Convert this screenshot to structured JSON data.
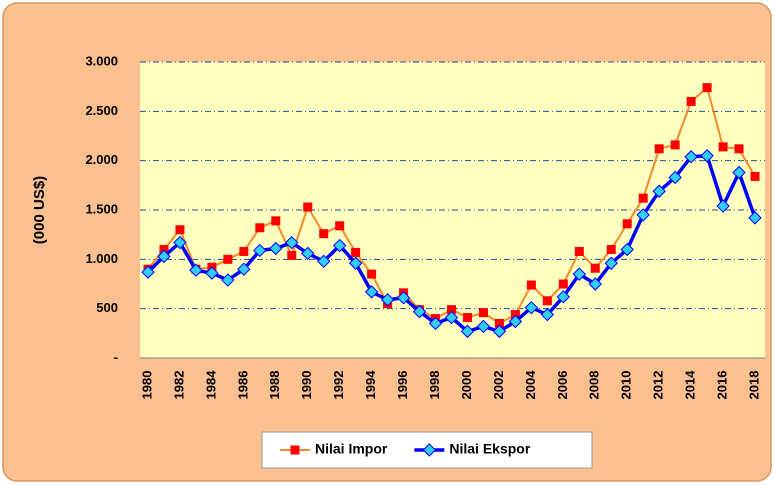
{
  "chart_data": {
    "type": "line",
    "y_axis_label": "(000 US$)",
    "categories": [
      "1980",
      null,
      "1982",
      null,
      "1984",
      null,
      "1986",
      null,
      "1988",
      null,
      "1990",
      null,
      "1992",
      null,
      "1994",
      null,
      "1996",
      null,
      "1998",
      null,
      "2000",
      null,
      "2002",
      null,
      "2004",
      null,
      "2006",
      null,
      "2008",
      null,
      "2010",
      null,
      "2012",
      null,
      "2014",
      null,
      "2016",
      null,
      "2018"
    ],
    "series": [
      {
        "name": "Nilai Impor",
        "color": "#f28a2a",
        "marker_color": "#ff0000",
        "marker": "square",
        "values": [
          900,
          1100,
          1300,
          900,
          920,
          1000,
          1080,
          1320,
          1390,
          1040,
          1530,
          1260,
          1340,
          1070,
          850,
          550,
          660,
          490,
          400,
          490,
          410,
          460,
          350,
          440,
          740,
          580,
          750,
          1080,
          910,
          1100,
          1360,
          1620,
          2120,
          2160,
          2600,
          2740,
          2140,
          2120,
          1840
        ]
      },
      {
        "name": "Nilai Ekspor",
        "color": "#0000ff",
        "marker_color": "#33ccff",
        "marker": "diamond",
        "values": [
          870,
          1030,
          1170,
          890,
          860,
          790,
          900,
          1090,
          1110,
          1170,
          1060,
          980,
          1140,
          960,
          670,
          590,
          610,
          470,
          350,
          410,
          270,
          320,
          270,
          370,
          510,
          440,
          620,
          850,
          750,
          960,
          1100,
          1450,
          1690,
          1830,
          2040,
          2050,
          1540,
          1880,
          1420
        ]
      }
    ],
    "ylim": [
      0,
      3000
    ],
    "yticks": [
      {
        "value": 0,
        "label": "-"
      },
      500,
      {
        "value": 1000,
        "label": "1.000"
      },
      {
        "value": 1500,
        "label": "1.500"
      },
      {
        "value": 2000,
        "label": "2.000"
      },
      {
        "value": 2500,
        "label": "2.500"
      },
      {
        "value": 3000,
        "label": "3.000"
      }
    ],
    "grid": true,
    "legend": "bottom"
  }
}
